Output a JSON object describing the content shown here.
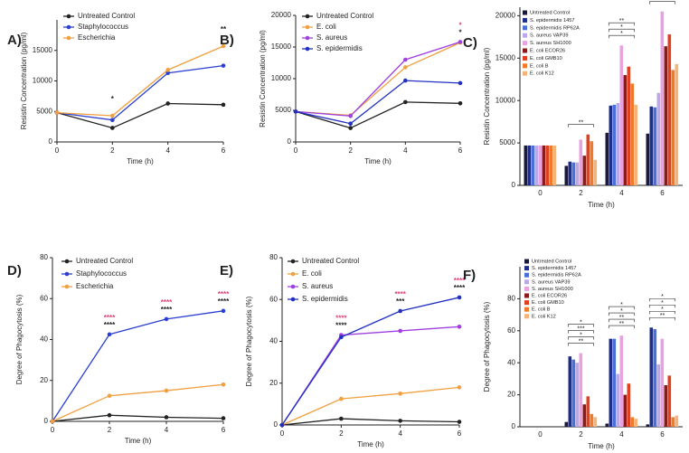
{
  "chart_data": [
    {
      "type": "line",
      "label": "A)",
      "xlabel": "Time (h)",
      "ylabel": "Resistin Concentration (pg/ml)",
      "x": [
        0,
        2,
        4,
        6
      ],
      "xlim": [
        0,
        6
      ],
      "xticks": [
        0,
        2,
        4,
        6
      ],
      "ylim": [
        0,
        20000
      ],
      "yticks": [
        0,
        5000,
        10000,
        15000
      ],
      "series": [
        {
          "name": "Untreated Control",
          "color": "#222222",
          "values": [
            4800,
            2300,
            6300,
            6100
          ]
        },
        {
          "name": "Staphylococcus",
          "color": "#2b3fd0",
          "values": [
            4800,
            3600,
            11300,
            12500
          ]
        },
        {
          "name": "Escherichia",
          "color": "#f0a040",
          "values": [
            4800,
            4300,
            11800,
            15700
          ]
        }
      ],
      "annotations": [
        {
          "x": 2,
          "text": "*",
          "color": "#222222"
        },
        {
          "x": 6,
          "text": "**",
          "color": "#222222"
        }
      ]
    },
    {
      "type": "line",
      "label": "B)",
      "xlabel": "Time (h)",
      "ylabel": "Resistin Concentration (pg/ml)",
      "x": [
        0,
        2,
        4,
        6
      ],
      "xlim": [
        0,
        6
      ],
      "xticks": [
        0,
        2,
        4,
        6
      ],
      "ylim": [
        0,
        20000
      ],
      "yticks": [
        0,
        5000,
        10000,
        15000,
        20000
      ],
      "series": [
        {
          "name": "Untreated Control",
          "color": "#222222",
          "values": [
            4800,
            2200,
            6300,
            6100
          ]
        },
        {
          "name": "E. coli",
          "color": "#f0a040",
          "values": [
            4800,
            4200,
            11800,
            15700
          ]
        },
        {
          "name": "S. aureus",
          "color": "#a040e0",
          "values": [
            4800,
            4100,
            13000,
            15800
          ]
        },
        {
          "name": "S. epidermidis",
          "color": "#2030c0",
          "values": [
            4800,
            2900,
            9700,
            9300
          ]
        }
      ],
      "annotations": [
        {
          "x": 6,
          "text": "*",
          "color": "#e0407a"
        },
        {
          "x": 6,
          "text": "*",
          "color": "#222222"
        }
      ]
    },
    {
      "type": "bar",
      "label": "C)",
      "xlabel": "Time (h)",
      "ylabel": "Resistin Concentration (pg/ml)",
      "categories": [
        "0",
        "2",
        "4",
        "6"
      ],
      "ylim": [
        0,
        21000
      ],
      "yticks": [
        0,
        5000,
        10000,
        15000,
        20000
      ],
      "series": [
        {
          "name": "Untreated Control",
          "color": "#1a1a3a",
          "values": [
            4700,
            2300,
            6200,
            6100
          ]
        },
        {
          "name": "S. epidermidis 1457",
          "color": "#1f2d8a",
          "values": [
            4700,
            2800,
            9400,
            9300
          ]
        },
        {
          "name": "S. epidermidis RP62A",
          "color": "#4a6fd6",
          "values": [
            4700,
            2700,
            9500,
            9200
          ]
        },
        {
          "name": "S. aureus VAP39",
          "color": "#b9a9e6",
          "values": [
            4700,
            2700,
            9700,
            10900
          ]
        },
        {
          "name": "S. aureus SH1000",
          "color": "#e8a2e0",
          "values": [
            4700,
            5400,
            16500,
            20500
          ]
        },
        {
          "name": "E. coli ECOR26",
          "color": "#8b1a1a",
          "values": [
            4700,
            3500,
            13000,
            16400
          ]
        },
        {
          "name": "E. coli GMB10",
          "color": "#e04020",
          "values": [
            4700,
            6000,
            14000,
            17800
          ]
        },
        {
          "name": "E. coli B",
          "color": "#f07a2a",
          "values": [
            4700,
            5200,
            12000,
            13600
          ]
        },
        {
          "name": "E. coli K12",
          "color": "#f5b37a",
          "values": [
            4700,
            3000,
            9500,
            14300
          ]
        }
      ],
      "annotations": [
        {
          "category": "2",
          "text": "**"
        },
        {
          "category": "4",
          "text": "*"
        },
        {
          "category": "4",
          "text": "*"
        },
        {
          "category": "4",
          "text": "**"
        },
        {
          "category": "6",
          "text": "*"
        },
        {
          "category": "6",
          "text": "*"
        },
        {
          "category": "6",
          "text": "**"
        },
        {
          "category": "6",
          "text": "*"
        }
      ]
    },
    {
      "type": "line",
      "label": "D)",
      "xlabel": "Time (h)",
      "ylabel": "Degree of Phagocytosis (%)",
      "x": [
        0,
        2,
        4,
        6
      ],
      "xlim": [
        0,
        6
      ],
      "xticks": [
        0,
        2,
        4,
        6
      ],
      "ylim": [
        0,
        80
      ],
      "yticks": [
        0,
        20,
        40,
        60,
        80
      ],
      "series": [
        {
          "name": "Untreated Control",
          "color": "#222222",
          "values": [
            0,
            3,
            2,
            1.5
          ]
        },
        {
          "name": "Staphylococcus",
          "color": "#2b3fd0",
          "values": [
            0,
            42.5,
            50,
            54
          ]
        },
        {
          "name": "Escherichia",
          "color": "#f0a040",
          "values": [
            0,
            12.5,
            15,
            18
          ]
        }
      ],
      "annotations": [
        {
          "x": 2,
          "text": "****",
          "color": "#e0407a"
        },
        {
          "x": 2,
          "text": "****",
          "color": "#222222"
        },
        {
          "x": 4,
          "text": "****",
          "color": "#e0407a"
        },
        {
          "x": 4,
          "text": "****",
          "color": "#222222"
        },
        {
          "x": 6,
          "text": "****",
          "color": "#e0407a"
        },
        {
          "x": 6,
          "text": "****",
          "color": "#222222"
        }
      ]
    },
    {
      "type": "line",
      "label": "E)",
      "xlabel": "Time (h)",
      "ylabel": "Degree of Phagocytosis (%)",
      "x": [
        0,
        2,
        4,
        6
      ],
      "xlim": [
        0,
        6
      ],
      "xticks": [
        0,
        2,
        4,
        6
      ],
      "ylim": [
        0,
        80
      ],
      "yticks": [
        0,
        20,
        40,
        60,
        80
      ],
      "series": [
        {
          "name": "Untreated Control",
          "color": "#222222",
          "values": [
            0,
            3,
            2,
            1.5
          ]
        },
        {
          "name": "E. coli",
          "color": "#f0a040",
          "values": [
            0,
            12.5,
            15,
            18
          ]
        },
        {
          "name": "S. aureus",
          "color": "#a040e0",
          "values": [
            0,
            43,
            45,
            47
          ]
        },
        {
          "name": "S. epidermidis",
          "color": "#2030c0",
          "values": [
            0,
            42,
            54.5,
            61
          ]
        }
      ],
      "annotations": [
        {
          "x": 2,
          "text": "****",
          "color": "#e0407a"
        },
        {
          "x": 2,
          "text": "****",
          "color": "#222222"
        },
        {
          "x": 4,
          "text": "****",
          "color": "#e0407a"
        },
        {
          "x": 4,
          "text": "***",
          "color": "#222222"
        },
        {
          "x": 6,
          "text": "****",
          "color": "#e0407a"
        },
        {
          "x": 6,
          "text": "****",
          "color": "#222222"
        }
      ]
    },
    {
      "type": "bar",
      "label": "F)",
      "xlabel": "Time (h)",
      "ylabel": "Degree of Phagocytosis (%)",
      "categories": [
        "0",
        "2",
        "4",
        "6"
      ],
      "ylim": [
        0,
        100
      ],
      "yticks": [
        0,
        20,
        40,
        60,
        80
      ],
      "series": [
        {
          "name": "Untreated Control",
          "color": "#1a1a3a",
          "values": [
            0,
            3,
            2,
            1.5
          ]
        },
        {
          "name": "S. epidermidis 1457",
          "color": "#1f2d8a",
          "values": [
            0,
            44,
            55,
            62
          ]
        },
        {
          "name": "S. epidermidis RP62A",
          "color": "#4a6fd6",
          "values": [
            0,
            42,
            55,
            61
          ]
        },
        {
          "name": "S. aureus VAP39",
          "color": "#b9a9e6",
          "values": [
            0,
            40,
            33,
            39
          ]
        },
        {
          "name": "S. aureus SH1000",
          "color": "#e8a2e0",
          "values": [
            0,
            46,
            57,
            55
          ]
        },
        {
          "name": "E. coli ECOR26",
          "color": "#8b1a1a",
          "values": [
            0,
            14,
            20,
            26
          ]
        },
        {
          "name": "E. coli GMB10",
          "color": "#e04020",
          "values": [
            0,
            19,
            27,
            32
          ]
        },
        {
          "name": "E. coli B",
          "color": "#f07a2a",
          "values": [
            0,
            8,
            6,
            6
          ]
        },
        {
          "name": "E. coli K12",
          "color": "#f5b37a",
          "values": [
            0,
            6,
            5,
            7
          ]
        }
      ],
      "annotations": [
        {
          "category": "2",
          "text": "**"
        },
        {
          "category": "2",
          "text": "*"
        },
        {
          "category": "2",
          "text": "***"
        },
        {
          "category": "2",
          "text": "*"
        },
        {
          "category": "4",
          "text": "**"
        },
        {
          "category": "4",
          "text": "**"
        },
        {
          "category": "4",
          "text": "*"
        },
        {
          "category": "4",
          "text": "*"
        },
        {
          "category": "6",
          "text": "**"
        },
        {
          "category": "6",
          "text": "*"
        },
        {
          "category": "6",
          "text": "*"
        },
        {
          "category": "6",
          "text": "*"
        }
      ]
    }
  ]
}
